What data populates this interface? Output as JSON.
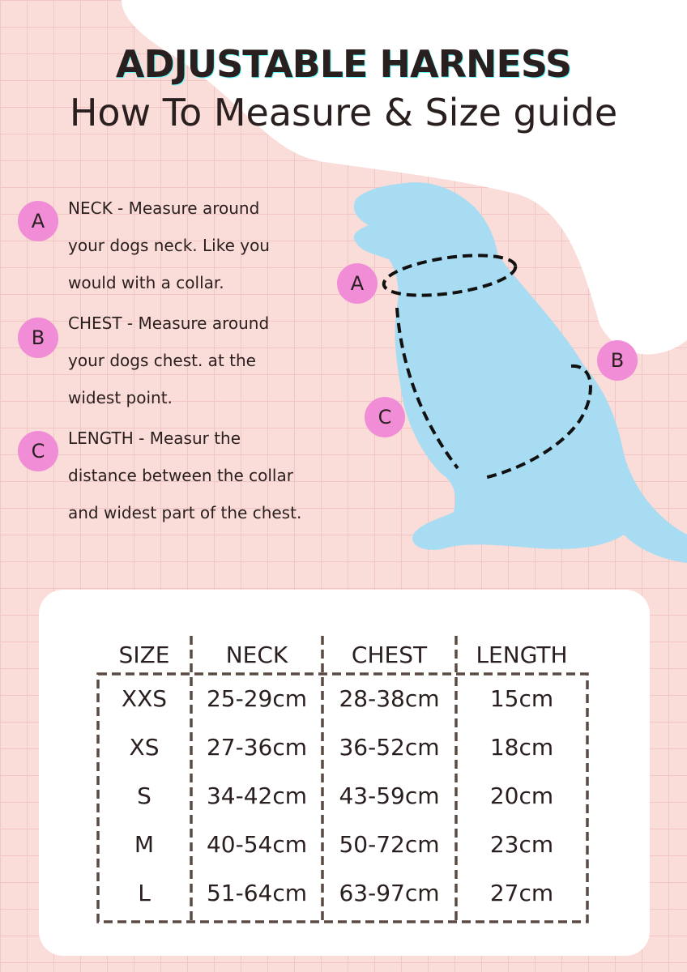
{
  "title": "ADJUSTABLE HARNESS",
  "subtitle": "How To Measure & Size guide",
  "colors": {
    "background": "#fadcd8",
    "grid": "#f3c6c6",
    "dog": "#a8dcf2",
    "badge": "#f08dd6",
    "table_border": "#5a4a44"
  },
  "instructions": [
    {
      "marker": "A",
      "lines": [
        "NECK - Measure around",
        "your dogs neck. Like you",
        "would with a collar."
      ]
    },
    {
      "marker": "B",
      "lines": [
        "CHEST - Measure around",
        "your dogs chest. at the",
        "widest point."
      ]
    },
    {
      "marker": "C",
      "lines": [
        "LENGTH - Measur the",
        "distance between the collar",
        "and widest part of the chest."
      ]
    }
  ],
  "diagram_markers": [
    "A",
    "B",
    "C"
  ],
  "table": {
    "headers": [
      "SIZE",
      "NECK",
      "CHEST",
      "LENGTH"
    ],
    "rows": [
      [
        "XXS",
        "25-29cm",
        "28-38cm",
        "15cm"
      ],
      [
        "XS",
        "27-36cm",
        "36-52cm",
        "18cm"
      ],
      [
        "S",
        "34-42cm",
        "43-59cm",
        "20cm"
      ],
      [
        "M",
        "40-54cm",
        "50-72cm",
        "23cm"
      ],
      [
        "L",
        "51-64cm",
        "63-97cm",
        "27cm"
      ]
    ]
  }
}
